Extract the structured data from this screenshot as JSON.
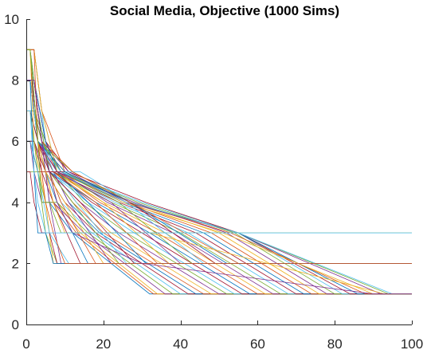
{
  "chart_data": {
    "type": "line",
    "title": "Social Media, Objective (1000 Sims)",
    "xlabel": "",
    "ylabel": "",
    "xlim": [
      0,
      100
    ],
    "ylim": [
      0,
      10
    ],
    "xticks": [
      "0",
      "20",
      "40",
      "60",
      "80",
      "100"
    ],
    "yticks": [
      "0",
      "2",
      "4",
      "6",
      "8",
      "10"
    ],
    "grid": false,
    "legend": "none",
    "colors": [
      "#0072BD",
      "#D95319",
      "#EDB120",
      "#7E2F8E",
      "#77AC30",
      "#4DBEEE",
      "#A2142F"
    ],
    "series": [
      {
        "x": [
          0,
          1,
          2,
          4,
          6,
          12,
          32,
          100
        ],
        "y": [
          9,
          9,
          7,
          6,
          4,
          3,
          1,
          1
        ]
      },
      {
        "x": [
          0,
          1,
          3,
          5,
          7,
          13,
          33,
          100
        ],
        "y": [
          8,
          8,
          6,
          5,
          4,
          3,
          1,
          1
        ]
      },
      {
        "x": [
          0,
          2,
          4,
          6,
          8,
          14,
          34,
          100
        ],
        "y": [
          7,
          7,
          6,
          5,
          4,
          3,
          1,
          1
        ]
      },
      {
        "x": [
          0,
          1,
          2,
          4,
          7,
          15,
          36,
          100
        ],
        "y": [
          6,
          6,
          5,
          4,
          4,
          3,
          1,
          1
        ]
      },
      {
        "x": [
          0,
          1,
          3,
          5,
          8,
          16,
          38,
          100
        ],
        "y": [
          5,
          5,
          5,
          4,
          4,
          3,
          1,
          1
        ]
      },
      {
        "x": [
          0,
          2,
          4,
          6,
          9,
          17,
          40,
          100
        ],
        "y": [
          9,
          9,
          7,
          5,
          4,
          3,
          1,
          1
        ]
      },
      {
        "x": [
          0,
          1,
          3,
          5,
          10,
          18,
          42,
          100
        ],
        "y": [
          8,
          8,
          6,
          5,
          4,
          3,
          1,
          1
        ]
      },
      {
        "x": [
          0,
          2,
          4,
          7,
          11,
          19,
          44,
          100
        ],
        "y": [
          7,
          7,
          6,
          5,
          4,
          3,
          1,
          1
        ]
      },
      {
        "x": [
          0,
          1,
          3,
          6,
          12,
          20,
          46,
          100
        ],
        "y": [
          6,
          6,
          5,
          5,
          4,
          3,
          1,
          1
        ]
      },
      {
        "x": [
          0,
          2,
          4,
          7,
          13,
          22,
          48,
          100
        ],
        "y": [
          8,
          8,
          6,
          5,
          4,
          3,
          1,
          1
        ]
      },
      {
        "x": [
          0,
          1,
          3,
          6,
          14,
          24,
          50,
          100
        ],
        "y": [
          9,
          9,
          6,
          5,
          4,
          3,
          1,
          1
        ]
      },
      {
        "x": [
          0,
          2,
          5,
          8,
          15,
          26,
          52,
          100
        ],
        "y": [
          7,
          7,
          6,
          5,
          4,
          3,
          1,
          1
        ]
      },
      {
        "x": [
          0,
          1,
          3,
          6,
          16,
          28,
          54,
          100
        ],
        "y": [
          8,
          8,
          6,
          5,
          4,
          3,
          1,
          1
        ]
      },
      {
        "x": [
          0,
          2,
          4,
          7,
          17,
          30,
          56,
          100
        ],
        "y": [
          6,
          6,
          5,
          5,
          4,
          3,
          1,
          1
        ]
      },
      {
        "x": [
          0,
          1,
          3,
          6,
          18,
          32,
          58,
          100
        ],
        "y": [
          9,
          9,
          7,
          5,
          4,
          3,
          1,
          1
        ]
      },
      {
        "x": [
          0,
          2,
          4,
          8,
          19,
          34,
          60,
          100
        ],
        "y": [
          8,
          8,
          6,
          5,
          4,
          3,
          1,
          1
        ]
      },
      {
        "x": [
          0,
          1,
          3,
          7,
          20,
          36,
          62,
          100
        ],
        "y": [
          7,
          7,
          6,
          5,
          4,
          3,
          1,
          1
        ]
      },
      {
        "x": [
          0,
          2,
          5,
          9,
          21,
          38,
          64,
          100
        ],
        "y": [
          8,
          8,
          6,
          5,
          4,
          3,
          1,
          1
        ]
      },
      {
        "x": [
          0,
          1,
          3,
          7,
          22,
          40,
          66,
          100
        ],
        "y": [
          6,
          6,
          5,
          5,
          4,
          3,
          1,
          1
        ]
      },
      {
        "x": [
          0,
          2,
          4,
          8,
          23,
          42,
          68,
          100
        ],
        "y": [
          9,
          9,
          7,
          5,
          4,
          3,
          1,
          1
        ]
      },
      {
        "x": [
          0,
          1,
          3,
          7,
          24,
          44,
          70,
          100
        ],
        "y": [
          8,
          8,
          6,
          5,
          4,
          3,
          1,
          1
        ]
      },
      {
        "x": [
          0,
          2,
          4,
          9,
          25,
          46,
          72,
          100
        ],
        "y": [
          7,
          7,
          6,
          5,
          4,
          3,
          1,
          1
        ]
      },
      {
        "x": [
          0,
          1,
          3,
          8,
          26,
          48,
          74,
          100
        ],
        "y": [
          8,
          8,
          6,
          5,
          4,
          3,
          1,
          1
        ]
      },
      {
        "x": [
          0,
          2,
          5,
          10,
          27,
          50,
          76,
          100
        ],
        "y": [
          6,
          6,
          5,
          5,
          4,
          3,
          1,
          1
        ]
      },
      {
        "x": [
          0,
          1,
          3,
          8,
          28,
          52,
          78,
          100
        ],
        "y": [
          9,
          9,
          6,
          5,
          4,
          3,
          1,
          1
        ]
      },
      {
        "x": [
          0,
          2,
          4,
          9,
          29,
          54,
          80,
          100
        ],
        "y": [
          8,
          8,
          6,
          5,
          4,
          3,
          1,
          1
        ]
      },
      {
        "x": [
          0,
          1,
          3,
          9,
          30,
          55,
          82,
          100
        ],
        "y": [
          7,
          7,
          6,
          5,
          4,
          3,
          1,
          1
        ]
      },
      {
        "x": [
          0,
          2,
          5,
          11,
          31,
          55,
          84,
          100
        ],
        "y": [
          8,
          8,
          6,
          5,
          4,
          3,
          1,
          1
        ]
      },
      {
        "x": [
          0,
          1,
          3,
          9,
          27,
          55,
          86,
          100
        ],
        "y": [
          6,
          6,
          5,
          5,
          4,
          3,
          1,
          1
        ]
      },
      {
        "x": [
          0,
          2,
          4,
          10,
          27,
          53,
          88,
          100
        ],
        "y": [
          9,
          9,
          7,
          5,
          4,
          3,
          1,
          1
        ]
      },
      {
        "x": [
          0,
          1,
          3,
          10,
          25,
          51,
          90,
          100
        ],
        "y": [
          8,
          8,
          6,
          5,
          4,
          3,
          1,
          1
        ]
      },
      {
        "x": [
          0,
          2,
          4,
          11,
          26,
          55,
          92,
          100
        ],
        "y": [
          7,
          7,
          6,
          5,
          4,
          3,
          1,
          1
        ]
      },
      {
        "x": [
          0,
          1,
          3,
          12,
          27,
          55,
          94,
          100
        ],
        "y": [
          8,
          8,
          6,
          5,
          4,
          3,
          1,
          1
        ]
      },
      {
        "x": [
          0,
          2,
          5,
          14,
          27,
          55,
          95,
          100
        ],
        "y": [
          6,
          6,
          5,
          5,
          4,
          3,
          1,
          1
        ]
      },
      {
        "x": [
          0,
          1,
          2,
          4,
          7,
          14,
          100
        ],
        "y": [
          9,
          9,
          7,
          5,
          4,
          2,
          2
        ]
      },
      {
        "x": [
          0,
          1,
          3,
          5,
          8,
          16,
          100
        ],
        "y": [
          8,
          8,
          6,
          5,
          4,
          2,
          2
        ]
      },
      {
        "x": [
          0,
          2,
          4,
          6,
          9,
          18,
          100
        ],
        "y": [
          7,
          7,
          6,
          5,
          4,
          2,
          2
        ]
      },
      {
        "x": [
          0,
          1,
          3,
          5,
          10,
          20,
          100
        ],
        "y": [
          8,
          8,
          6,
          5,
          4,
          2,
          2
        ]
      },
      {
        "x": [
          0,
          2,
          4,
          7,
          11,
          22,
          100
        ],
        "y": [
          6,
          6,
          5,
          5,
          4,
          2,
          2
        ]
      },
      {
        "x": [
          0,
          1,
          3,
          6,
          12,
          24,
          100
        ],
        "y": [
          9,
          9,
          7,
          5,
          4,
          2,
          2
        ]
      },
      {
        "x": [
          0,
          2,
          4,
          7,
          13,
          26,
          100
        ],
        "y": [
          8,
          8,
          6,
          5,
          4,
          2,
          2
        ]
      },
      {
        "x": [
          0,
          1,
          3,
          6,
          14,
          28,
          100
        ],
        "y": [
          7,
          7,
          6,
          5,
          4,
          2,
          2
        ]
      },
      {
        "x": [
          0,
          2,
          5,
          8,
          16,
          31,
          100
        ],
        "y": [
          8,
          8,
          6,
          5,
          4,
          2,
          2
        ]
      },
      {
        "x": [
          0,
          1,
          3,
          7,
          18,
          34,
          100
        ],
        "y": [
          6,
          6,
          5,
          5,
          4,
          2,
          2
        ]
      },
      {
        "x": [
          0,
          2,
          4,
          8,
          20,
          37,
          100
        ],
        "y": [
          9,
          9,
          7,
          5,
          4,
          2,
          2
        ]
      },
      {
        "x": [
          0,
          1,
          3,
          8,
          22,
          40,
          100
        ],
        "y": [
          8,
          8,
          6,
          5,
          4,
          2,
          2
        ]
      },
      {
        "x": [
          0,
          2,
          4,
          9,
          24,
          43,
          100
        ],
        "y": [
          7,
          7,
          6,
          5,
          4,
          2,
          2
        ]
      },
      {
        "x": [
          0,
          1,
          3,
          9,
          26,
          46,
          100
        ],
        "y": [
          8,
          8,
          6,
          5,
          4,
          2,
          2
        ]
      },
      {
        "x": [
          0,
          2,
          5,
          10,
          27,
          49,
          100
        ],
        "y": [
          6,
          6,
          5,
          5,
          4,
          2,
          2
        ]
      },
      {
        "x": [
          0,
          1,
          3,
          10,
          27,
          52,
          100
        ],
        "y": [
          9,
          9,
          6,
          5,
          4,
          2,
          2
        ]
      },
      {
        "x": [
          0,
          2,
          4,
          12,
          27,
          55,
          100
        ],
        "y": [
          8,
          8,
          6,
          5,
          4,
          2,
          2
        ]
      },
      {
        "x": [
          0,
          1,
          2,
          5,
          7,
          100
        ],
        "y": [
          9,
          9,
          6,
          4,
          2,
          2
        ]
      },
      {
        "x": [
          0,
          2,
          4,
          6,
          9,
          100
        ],
        "y": [
          8,
          8,
          6,
          4,
          2,
          2
        ]
      },
      {
        "x": [
          0,
          1,
          3,
          5,
          8,
          100
        ],
        "y": [
          7,
          7,
          5,
          3,
          2,
          2
        ]
      },
      {
        "x": [
          0,
          1,
          3,
          6,
          11,
          100
        ],
        "y": [
          6,
          6,
          5,
          3,
          2,
          2
        ]
      },
      {
        "x": [
          0,
          1,
          2,
          4,
          6,
          8,
          100
        ],
        "y": [
          5,
          5,
          4,
          3,
          3,
          2,
          2
        ]
      },
      {
        "x": [
          0,
          1,
          2,
          3,
          5,
          7,
          100
        ],
        "y": [
          8,
          8,
          5,
          3,
          3,
          2,
          2
        ]
      },
      {
        "x": [
          0,
          2,
          3,
          5,
          7,
          10,
          100
        ],
        "y": [
          9,
          9,
          6,
          4,
          3,
          2,
          2
        ]
      },
      {
        "x": [
          0,
          1,
          3,
          5,
          7,
          10,
          32,
          93,
          100
        ],
        "y": [
          9,
          9,
          6,
          5,
          4,
          3,
          3,
          1,
          1
        ]
      },
      {
        "x": [
          0,
          2,
          4,
          6,
          8,
          12,
          30,
          90,
          100
        ],
        "y": [
          8,
          8,
          6,
          5,
          4,
          3,
          2,
          1,
          1
        ]
      },
      {
        "x": [
          0,
          1,
          3,
          4,
          6,
          9,
          100
        ],
        "y": [
          9,
          9,
          6,
          4,
          4,
          3,
          3
        ]
      },
      {
        "x": [
          0,
          1,
          2,
          3,
          5,
          100
        ],
        "y": [
          7,
          7,
          5,
          4,
          3,
          3
        ]
      }
    ]
  }
}
